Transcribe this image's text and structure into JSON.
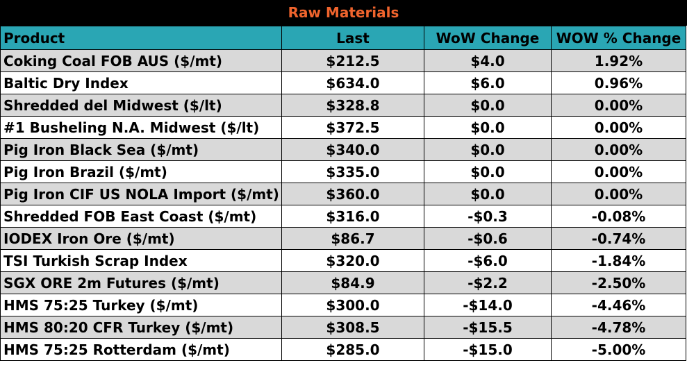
{
  "chart_data": {
    "type": "table",
    "title": "Raw Materials",
    "columns": [
      "Product",
      "Last",
      "WoW Change",
      "WOW % Change"
    ],
    "rows": [
      [
        "Coking Coal FOB AUS ($/mt)",
        "$212.5",
        "$4.0",
        "1.92%"
      ],
      [
        "Baltic Dry Index",
        "$634.0",
        "$6.0",
        "0.96%"
      ],
      [
        "Shredded del  Midwest ($/lt)",
        "$328.8",
        "$0.0",
        "0.00%"
      ],
      [
        "#1 Busheling N.A. Midwest ($/lt)",
        "$372.5",
        "$0.0",
        "0.00%"
      ],
      [
        "Pig Iron Black Sea ($/mt)",
        "$340.0",
        "$0.0",
        "0.00%"
      ],
      [
        "Pig Iron Brazil ($/mt)",
        "$335.0",
        "$0.0",
        "0.00%"
      ],
      [
        "Pig Iron CIF US NOLA Import ($/mt)",
        "$360.0",
        "$0.0",
        "0.00%"
      ],
      [
        "Shredded FOB East Coast ($/mt)",
        "$316.0",
        "-$0.3",
        "-0.08%"
      ],
      [
        "IODEX  Iron Ore ($/mt)",
        "$86.7",
        "-$0.6",
        "-0.74%"
      ],
      [
        "TSI Turkish Scrap Index",
        "$320.0",
        "-$6.0",
        "-1.84%"
      ],
      [
        "SGX ORE 2m Futures ($/mt)",
        "$84.9",
        "-$2.2",
        "-2.50%"
      ],
      [
        "HMS 75:25 Turkey ($/mt)",
        "$300.0",
        "-$14.0",
        "-4.46%"
      ],
      [
        "HMS 80:20 CFR Turkey ($/mt)",
        "$308.5",
        "-$15.5",
        "-4.78%"
      ],
      [
        "HMS 75:25 Rotterdam ($/mt)",
        "$285.0",
        "-$15.0",
        "-5.00%"
      ]
    ]
  },
  "colors": {
    "title_text": "#f0642d",
    "title_background": "#000000",
    "header_background": "#2aa6b4",
    "shaded_row": "#d9d9d9",
    "plain_row": "#ffffff"
  }
}
